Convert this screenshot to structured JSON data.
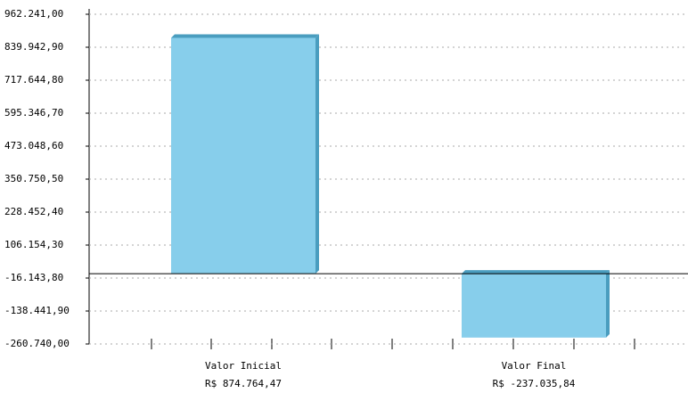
{
  "chart_data": {
    "type": "bar",
    "categories": [
      "Valor Inicial",
      "Valor Final"
    ],
    "values": [
      874764.47,
      -237035.84
    ],
    "value_labels": [
      "R$ 874.764,47",
      "R$ -237.035,84"
    ],
    "color": "#87ceeb",
    "ylim": [
      -260740,
      962241
    ],
    "yticks": [
      {
        "value": 962241,
        "label": "962.241,00"
      },
      {
        "value": 839942.9,
        "label": "839.942,90"
      },
      {
        "value": 717644.8,
        "label": "717.644,80"
      },
      {
        "value": 595346.7,
        "label": "595.346,70"
      },
      {
        "value": 473048.6,
        "label": "473.048,60"
      },
      {
        "value": 350750.5,
        "label": "350.750,50"
      },
      {
        "value": 228452.4,
        "label": "228.452,40"
      },
      {
        "value": 106154.3,
        "label": "106.154,30"
      },
      {
        "value": -16143.8,
        "label": "-16.143,80"
      },
      {
        "value": -138441.9,
        "label": "-138.441,90"
      },
      {
        "value": -260740,
        "label": "-260.740,00"
      }
    ],
    "grid": true
  }
}
